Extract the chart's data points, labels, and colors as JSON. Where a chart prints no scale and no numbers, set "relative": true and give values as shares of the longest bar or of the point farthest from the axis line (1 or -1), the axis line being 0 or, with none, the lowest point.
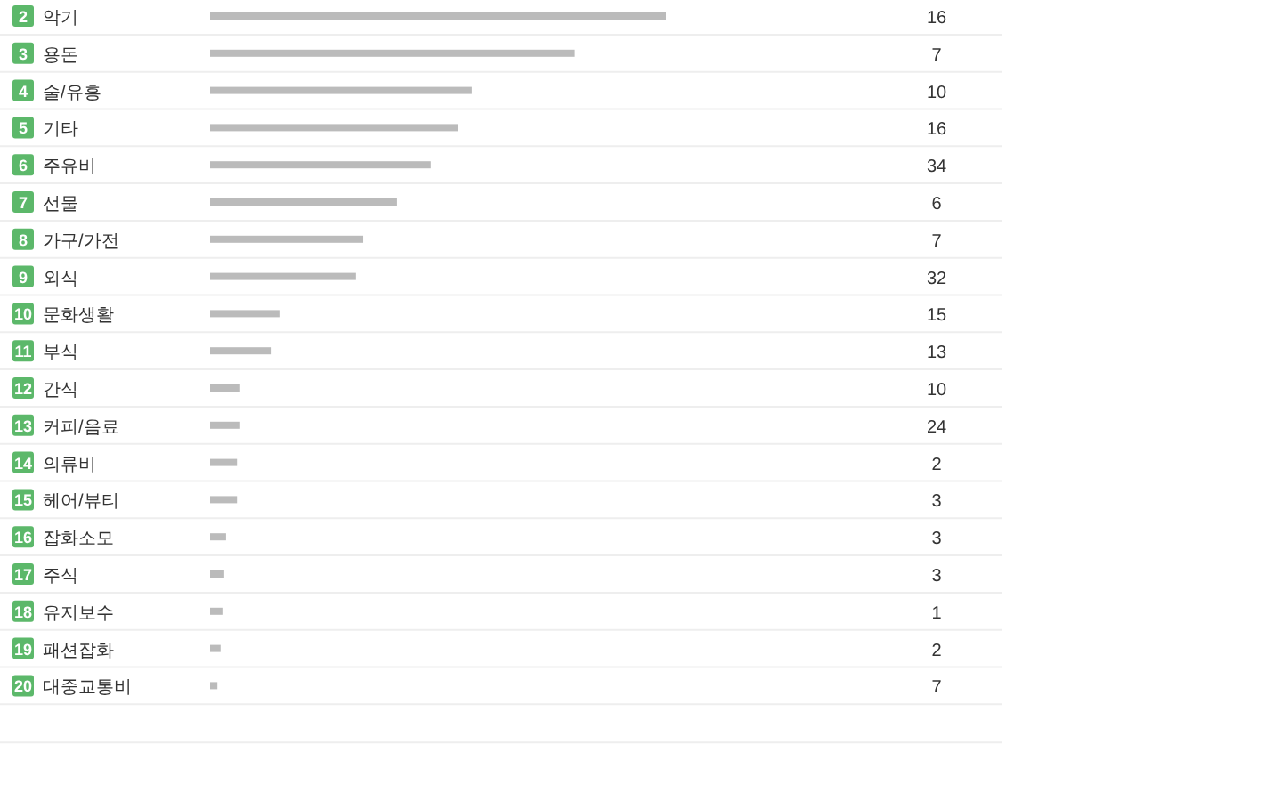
{
  "chart_data": {
    "type": "bar",
    "orientation": "horizontal",
    "relative": true,
    "color": "#bbbbbb",
    "categories": [
      "악기",
      "용돈",
      "술/유흥",
      "기타",
      "주유비",
      "선물",
      "가구/가전",
      "외식",
      "문화생활",
      "부식",
      "간식",
      "커피/음료",
      "의류비",
      "헤어/뷰티",
      "잡화소모",
      "주식",
      "유지보수",
      "패션잡화",
      "대중교통비"
    ],
    "values": [
      1,
      0.8,
      0.574,
      0.543,
      0.484,
      0.41,
      0.336,
      0.32,
      0.152,
      0.133,
      0.066,
      0.066,
      0.059,
      0.059,
      0.035,
      0.031,
      0.027,
      0.023,
      0.016
    ],
    "annotations": [
      "2",
      "16",
      "3",
      "7",
      "4",
      "10",
      "5",
      "16",
      "6",
      "34",
      "7",
      "6",
      "8",
      "7",
      "9",
      "32",
      "10",
      "15",
      "11",
      "13",
      "12",
      "10",
      "13",
      "24",
      "14",
      "2",
      "15",
      "3",
      "16",
      "3",
      "17",
      "3",
      "18",
      "1",
      "19",
      "2",
      "20",
      "7"
    ]
  }
}
